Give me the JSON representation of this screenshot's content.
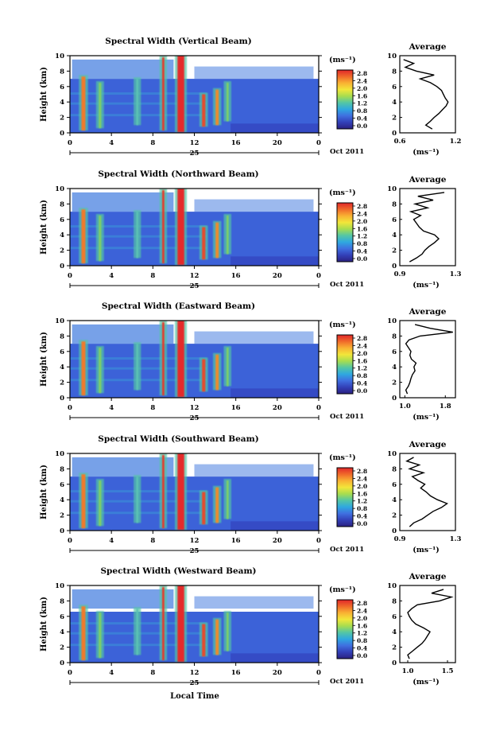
{
  "figure": {
    "xlabel": "Local Time",
    "colorbar_unit": "(ms⁻¹)",
    "colorbar_ticks": [
      "2.8",
      "2.4",
      "2.0",
      "1.6",
      "1.2",
      "0.8",
      "0.4",
      "0.0"
    ],
    "colorbar_colors": [
      "#e0262a",
      "#f06a2a",
      "#f9b233",
      "#f2e63a",
      "#a7dd4f",
      "#54c6a5",
      "#2fa8e0",
      "#3f6fe0",
      "#3340b8",
      "#2a2080"
    ],
    "date_label": "Oct 2011",
    "day_label": "25",
    "background_color": "#3c62d8"
  },
  "chart_data": [
    {
      "type": "heatmap",
      "title": "Spectral Width (Vertical Beam)",
      "xlabel": "Local Time",
      "ylabel": "Height (km)",
      "x_ticks": [
        "0",
        "4",
        "8",
        "12",
        "16",
        "20",
        "0"
      ],
      "y_ticks": [
        "0",
        "2",
        "4",
        "6",
        "8",
        "10"
      ],
      "xlim": [
        0,
        24
      ],
      "ylim": [
        0,
        10
      ],
      "colorbar": {
        "unit": "(ms⁻¹)",
        "range": [
          0.0,
          2.8
        ]
      },
      "profile": {
        "title": "Average",
        "xlabel": "(ms⁻¹)",
        "x_ticks": [
          "0.6",
          "1.2"
        ],
        "xlim": [
          0.6,
          1.2
        ],
        "ylim": [
          0,
          10
        ],
        "y_ticks": [
          "0",
          "2",
          "4",
          "6",
          "8",
          "10"
        ],
        "heights": [
          0.5,
          1.0,
          1.5,
          2.0,
          2.5,
          3.0,
          3.5,
          4.0,
          4.5,
          5.0,
          5.5,
          6.0,
          6.5,
          7.0,
          7.5,
          8.0,
          8.5,
          9.0,
          9.5
        ],
        "values": [
          0.95,
          0.88,
          0.93,
          0.97,
          1.02,
          1.06,
          1.1,
          1.12,
          1.09,
          1.07,
          1.05,
          1.0,
          0.93,
          0.82,
          0.97,
          0.78,
          0.66,
          0.75,
          0.64
        ]
      }
    },
    {
      "type": "heatmap",
      "title": "Spectral Width (Northward Beam)",
      "xlabel": "Local Time",
      "ylabel": "Height (km)",
      "x_ticks": [
        "0",
        "4",
        "8",
        "12",
        "16",
        "20",
        "0"
      ],
      "y_ticks": [
        "0",
        "2",
        "4",
        "6",
        "8",
        "10"
      ],
      "xlim": [
        0,
        24
      ],
      "ylim": [
        0,
        10
      ],
      "colorbar": {
        "unit": "(ms⁻¹)",
        "range": [
          0.0,
          2.8
        ]
      },
      "profile": {
        "title": "Average",
        "xlabel": "(ms⁻¹)",
        "x_ticks": [
          "0.9",
          "1.3"
        ],
        "xlim": [
          0.9,
          1.3
        ],
        "ylim": [
          0,
          10
        ],
        "y_ticks": [
          "0",
          "2",
          "4",
          "6",
          "8",
          "10"
        ],
        "heights": [
          0.5,
          1.0,
          1.5,
          2.0,
          2.5,
          3.0,
          3.5,
          4.0,
          4.5,
          5.0,
          5.5,
          6.0,
          6.5,
          7.0,
          7.5,
          8.0,
          8.5,
          9.0,
          9.5
        ],
        "values": [
          0.97,
          1.02,
          1.06,
          1.08,
          1.11,
          1.15,
          1.18,
          1.15,
          1.07,
          1.04,
          1.02,
          1.0,
          1.05,
          0.98,
          1.1,
          1.01,
          1.14,
          1.03,
          1.22
        ]
      }
    },
    {
      "type": "heatmap",
      "title": "Spectral Width (Eastward Beam)",
      "xlabel": "Local Time",
      "ylabel": "Height (km)",
      "x_ticks": [
        "0",
        "4",
        "8",
        "12",
        "16",
        "20",
        "0"
      ],
      "y_ticks": [
        "0",
        "2",
        "4",
        "6",
        "8",
        "10"
      ],
      "xlim": [
        0,
        24
      ],
      "ylim": [
        0,
        10
      ],
      "colorbar": {
        "unit": "(ms⁻¹)",
        "range": [
          0.0,
          2.8
        ]
      },
      "profile": {
        "title": "Average",
        "xlabel": "(ms⁻¹)",
        "x_ticks": [
          "1.0",
          "1.8"
        ],
        "xlim": [
          0.9,
          2.0
        ],
        "ylim": [
          0,
          10
        ],
        "y_ticks": [
          "0",
          "2",
          "4",
          "6",
          "8",
          "10"
        ],
        "heights": [
          0.5,
          1.0,
          1.5,
          2.0,
          2.5,
          3.0,
          3.5,
          4.0,
          4.5,
          5.0,
          5.5,
          6.0,
          6.5,
          7.0,
          7.5,
          8.0,
          8.5,
          9.0,
          9.5
        ],
        "values": [
          1.05,
          1.02,
          1.07,
          1.1,
          1.12,
          1.15,
          1.2,
          1.18,
          1.22,
          1.13,
          1.1,
          1.12,
          1.07,
          1.02,
          1.08,
          1.3,
          1.95,
          1.5,
          1.2
        ]
      }
    },
    {
      "type": "heatmap",
      "title": "Spectral Width (Southward Beam)",
      "xlabel": "Local Time",
      "ylabel": "Height (km)",
      "x_ticks": [
        "0",
        "4",
        "8",
        "12",
        "16",
        "20",
        "0"
      ],
      "y_ticks": [
        "0",
        "2",
        "4",
        "6",
        "8",
        "10"
      ],
      "xlim": [
        0,
        24
      ],
      "ylim": [
        0,
        10
      ],
      "colorbar": {
        "unit": "(ms⁻¹)",
        "range": [
          0.0,
          2.8
        ]
      },
      "profile": {
        "title": "Average",
        "xlabel": "(ms⁻¹)",
        "x_ticks": [
          "0.9",
          "1.3"
        ],
        "xlim": [
          0.9,
          1.3
        ],
        "ylim": [
          0,
          10
        ],
        "y_ticks": [
          "0",
          "2",
          "4",
          "6",
          "8",
          "10"
        ],
        "heights": [
          0.5,
          1.0,
          1.5,
          2.0,
          2.5,
          3.0,
          3.5,
          4.0,
          4.5,
          5.0,
          5.5,
          6.0,
          6.5,
          7.0,
          7.5,
          8.0,
          8.5,
          9.0,
          9.5
        ],
        "values": [
          0.97,
          1.0,
          1.06,
          1.1,
          1.14,
          1.2,
          1.24,
          1.17,
          1.12,
          1.09,
          1.05,
          1.08,
          1.03,
          0.99,
          1.07,
          0.97,
          1.04,
          0.95,
          1.0
        ]
      }
    },
    {
      "type": "heatmap",
      "title": "Spectral Width (Westward Beam)",
      "xlabel": "Local Time",
      "ylabel": "Height (km)",
      "x_ticks": [
        "0",
        "4",
        "8",
        "12",
        "16",
        "20",
        "0"
      ],
      "y_ticks": [
        "0",
        "2",
        "4",
        "6",
        "8",
        "10"
      ],
      "xlim": [
        0,
        24
      ],
      "ylim": [
        0,
        10
      ],
      "colorbar": {
        "unit": "(ms⁻¹)",
        "range": [
          0.0,
          2.8
        ]
      },
      "profile": {
        "title": "Average",
        "xlabel": "(ms⁻¹)",
        "x_ticks": [
          "1.0",
          "1.5"
        ],
        "xlim": [
          0.9,
          1.6
        ],
        "ylim": [
          0,
          10
        ],
        "y_ticks": [
          "0",
          "2",
          "4",
          "6",
          "8",
          "10"
        ],
        "heights": [
          0.5,
          1.0,
          1.5,
          2.0,
          2.5,
          3.0,
          3.5,
          4.0,
          4.5,
          5.0,
          5.5,
          6.0,
          6.5,
          7.0,
          7.5,
          8.0,
          8.5,
          9.0,
          9.5
        ],
        "values": [
          1.02,
          1.0,
          1.06,
          1.12,
          1.18,
          1.22,
          1.25,
          1.28,
          1.2,
          1.1,
          1.05,
          1.02,
          1.0,
          1.05,
          1.12,
          1.4,
          1.55,
          1.3,
          1.45
        ]
      }
    }
  ]
}
